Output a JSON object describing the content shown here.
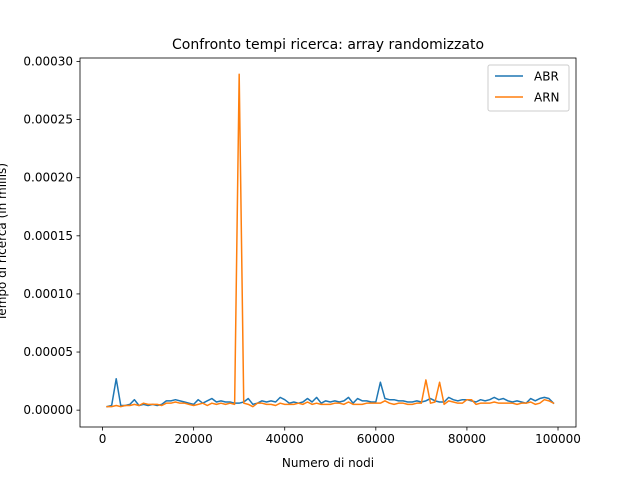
{
  "chart_data": {
    "type": "line",
    "title": "Confronto tempi ricerca: array randomizzato",
    "xlabel": "Numero di nodi",
    "ylabel": "Tempo di ricerca (in millis)",
    "xlim": [
      -4950,
      103950
    ],
    "ylim": [
      -1.45e-05,
      0.000303
    ],
    "xticks": [
      0,
      20000,
      40000,
      60000,
      80000,
      100000
    ],
    "xtick_labels": [
      "0",
      "20000",
      "40000",
      "60000",
      "80000",
      "100000"
    ],
    "yticks": [
      0,
      5e-05,
      0.0001,
      0.00015,
      0.0002,
      0.00025,
      0.0003
    ],
    "ytick_labels": [
      "0.00000",
      "0.00005",
      "0.00010",
      "0.00015",
      "0.00020",
      "0.00025",
      "0.00030"
    ],
    "grid": false,
    "legend_position": "top-right",
    "x": [
      1000,
      2000,
      3000,
      4000,
      5000,
      6000,
      7000,
      8000,
      9000,
      10000,
      11000,
      12000,
      13000,
      14000,
      15000,
      16000,
      17000,
      18000,
      19000,
      20000,
      21000,
      22000,
      23000,
      24000,
      25000,
      26000,
      27000,
      28000,
      29000,
      30000,
      31000,
      32000,
      33000,
      34000,
      35000,
      36000,
      37000,
      38000,
      39000,
      40000,
      41000,
      42000,
      43000,
      44000,
      45000,
      46000,
      47000,
      48000,
      49000,
      50000,
      51000,
      52000,
      53000,
      54000,
      55000,
      56000,
      57000,
      58000,
      59000,
      60000,
      61000,
      62000,
      63000,
      64000,
      65000,
      66000,
      67000,
      68000,
      69000,
      70000,
      71000,
      72000,
      73000,
      74000,
      75000,
      76000,
      77000,
      78000,
      79000,
      80000,
      81000,
      82000,
      83000,
      84000,
      85000,
      86000,
      87000,
      88000,
      89000,
      90000,
      91000,
      92000,
      93000,
      94000,
      95000,
      96000,
      97000,
      98000,
      99000
    ],
    "series": [
      {
        "name": "ABR",
        "color": "#1f77b4",
        "values": [
          3e-06,
          4e-06,
          2.7e-05,
          4e-06,
          4e-06,
          5e-06,
          9e-06,
          4e-06,
          5e-06,
          4e-06,
          5e-06,
          4e-06,
          5e-06,
          8e-06,
          8e-06,
          9e-06,
          8e-06,
          7e-06,
          6e-06,
          5e-06,
          9e-06,
          6e-06,
          8e-06,
          1e-05,
          7e-06,
          8e-06,
          7e-06,
          7e-06,
          6e-06,
          6e-06,
          7e-06,
          1e-05,
          5e-06,
          6e-06,
          8e-06,
          7e-06,
          8e-06,
          7e-06,
          1.1e-05,
          9e-06,
          6e-06,
          7e-06,
          6e-06,
          7e-06,
          1e-05,
          7e-06,
          1.1e-05,
          6e-06,
          8e-06,
          7e-06,
          8e-06,
          7e-06,
          8e-06,
          1.1e-05,
          6e-06,
          1e-05,
          8e-06,
          8e-06,
          7e-06,
          7e-06,
          2.4e-05,
          1e-05,
          9e-06,
          9e-06,
          8e-06,
          8e-06,
          7e-06,
          7e-06,
          8e-06,
          7e-06,
          8e-06,
          1e-05,
          8e-06,
          7e-06,
          7e-06,
          1.1e-05,
          9e-06,
          8e-06,
          9e-06,
          9e-06,
          8e-06,
          7e-06,
          9e-06,
          8e-06,
          9e-06,
          1.1e-05,
          9e-06,
          1e-05,
          8e-06,
          7e-06,
          8e-06,
          7e-06,
          6e-06,
          1e-05,
          8e-06,
          1e-05,
          1.1e-05,
          1e-05,
          6e-06
        ]
      },
      {
        "name": "ARN",
        "color": "#ff7f0e",
        "values": [
          3e-06,
          3e-06,
          4e-06,
          3e-06,
          4e-06,
          4e-06,
          5e-06,
          4e-06,
          6e-06,
          5e-06,
          5e-06,
          5e-06,
          4e-06,
          6e-06,
          6e-06,
          7e-06,
          6e-06,
          6e-06,
          5e-06,
          4e-06,
          5e-06,
          6e-06,
          4e-06,
          6e-06,
          5e-06,
          6e-06,
          5e-06,
          6e-06,
          5e-06,
          0.000289,
          6e-06,
          5e-06,
          3e-06,
          6e-06,
          6e-06,
          5e-06,
          5e-06,
          4e-06,
          6e-06,
          5e-06,
          5e-06,
          5e-06,
          6e-06,
          5e-06,
          7e-06,
          5e-06,
          6e-06,
          5e-06,
          5e-06,
          5e-06,
          6e-06,
          6e-06,
          5e-06,
          7e-06,
          5e-06,
          5e-06,
          5e-06,
          6e-06,
          6e-06,
          6e-06,
          6e-06,
          8e-06,
          6e-06,
          5e-06,
          6e-06,
          6e-06,
          5e-06,
          5e-06,
          6e-06,
          6e-06,
          2.6e-05,
          6e-06,
          7e-06,
          2.4e-05,
          5e-06,
          8e-06,
          7e-06,
          6e-06,
          6e-06,
          9e-06,
          9e-06,
          5e-06,
          6e-06,
          6e-06,
          6e-06,
          7e-06,
          6e-06,
          6e-06,
          6e-06,
          6e-06,
          5e-06,
          6e-06,
          6e-06,
          7e-06,
          5e-06,
          6e-06,
          9e-06,
          8e-06,
          6e-06
        ]
      }
    ]
  }
}
